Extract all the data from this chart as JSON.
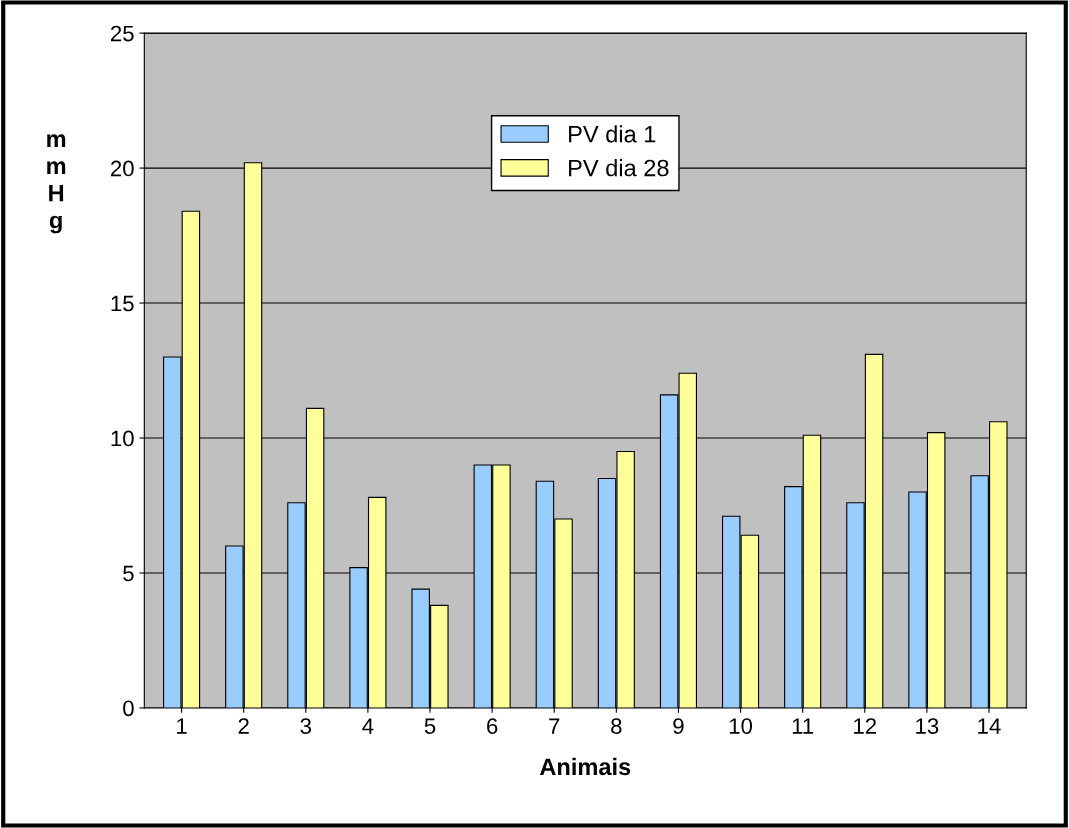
{
  "chart_data": {
    "type": "bar",
    "xlabel": "Animais",
    "ylabel": "mmHg",
    "categories": [
      "1",
      "2",
      "3",
      "4",
      "5",
      "6",
      "7",
      "8",
      "9",
      "10",
      "11",
      "12",
      "13",
      "14"
    ],
    "series": [
      {
        "name": "PV dia 1",
        "color": "#99ccff",
        "values": [
          13,
          6,
          7.6,
          5.2,
          4.4,
          9,
          8.4,
          8.5,
          11.6,
          7.1,
          8.2,
          7.6,
          8,
          8.6
        ]
      },
      {
        "name": "PV dia 28",
        "color": "#ffff99",
        "values": [
          18.4,
          20.2,
          11.1,
          7.8,
          3.8,
          9,
          7,
          9.5,
          12.4,
          6.4,
          10.1,
          13.1,
          10.2,
          10.6
        ]
      }
    ],
    "ylim": [
      0,
      25
    ],
    "yticks": [
      0,
      5,
      10,
      15,
      20,
      25
    ],
    "grid": "y",
    "legend": "top"
  }
}
